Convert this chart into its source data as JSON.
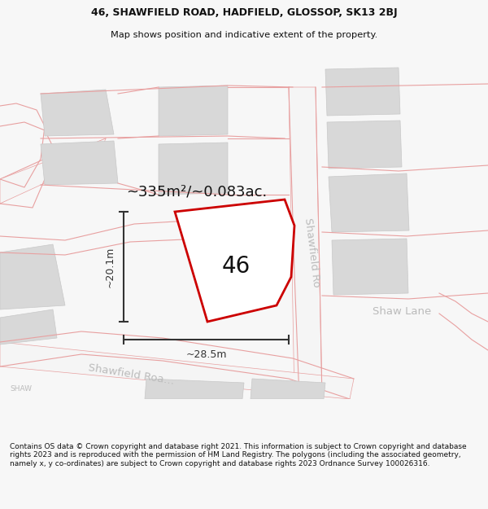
{
  "title_line1": "46, SHAWFIELD ROAD, HADFIELD, GLOSSOP, SK13 2BJ",
  "title_line2": "Map shows position and indicative extent of the property.",
  "footer_text": "Contains OS data © Crown copyright and database right 2021. This information is subject to Crown copyright and database rights 2023 and is reproduced with the permission of HM Land Registry. The polygons (including the associated geometry, namely x, y co-ordinates) are subject to Crown copyright and database rights 2023 Ordnance Survey 100026316.",
  "area_label": "~335m²/~0.083ac.",
  "house_number": "46",
  "dim_width": "~28.5m",
  "dim_height": "~20.1m",
  "road_label_diag": "Shawfield Ro…",
  "road_label_lower": "Shawfield Roa…",
  "shaw_lane_label": "Shaw Lane",
  "shaw_label": "SHAW",
  "bg_color": "#f7f7f7",
  "map_bg": "#ffffff",
  "building_fill": "#d8d8d8",
  "building_edge": "#c8c8c8",
  "road_line_color": "#e8a0a0",
  "plot_line_color": "#cc0000",
  "dim_line_color": "#333333",
  "text_color": "#111111",
  "road_text_color": "#bbbbbb",
  "title_fontsize": 9.0,
  "subtitle_fontsize": 8.2,
  "footer_fontsize": 6.5,
  "area_fontsize": 13,
  "num_fontsize": 20,
  "dim_fontsize": 9,
  "road_fontsize": 9.5
}
